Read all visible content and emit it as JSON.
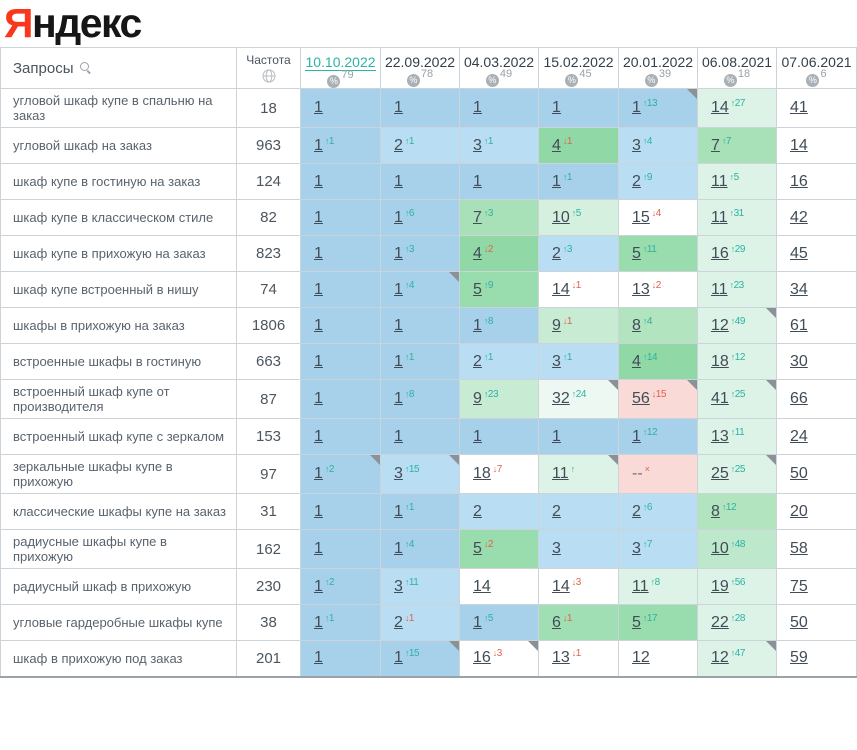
{
  "logo": {
    "first_letter": "Я",
    "rest": "ндекс",
    "first_letter_color": "#f9371c"
  },
  "symbols": {
    "up_arrow": "↑",
    "down_arrow": "↓",
    "dropped_mark": "×",
    "percent": "%"
  },
  "colors": {
    "sup_up": "#2bb2a0",
    "sup_down": "#e0614f",
    "active_date": "#2bb3a3",
    "bg": {
      "b1": "#a7d1eb",
      "b2": "#b9def3",
      "g4": "#90d9a6",
      "g5": "#99dcad",
      "g6": "#a0dfb3",
      "g7": "#a8e1b8",
      "g8": "#b1e4bf",
      "g9": "#c7ecd3",
      "g10": "#d6f0df",
      "g10b": "#bee8cc",
      "p": "#def3e7",
      "pp": "#edf8f2",
      "w": "#ffffff",
      "r": "#f9dad7"
    }
  },
  "header": {
    "queries_label": "Запросы",
    "frequency_label": "Частота",
    "search_icon": "magnifier-icon",
    "frequency_icon": "globe-icon"
  },
  "dates": [
    {
      "label": "10.10.2022",
      "percent": "79",
      "active": true
    },
    {
      "label": "22.09.2022",
      "percent": "78",
      "active": false
    },
    {
      "label": "04.03.2022",
      "percent": "49",
      "active": false
    },
    {
      "label": "15.02.2022",
      "percent": "45",
      "active": false
    },
    {
      "label": "20.01.2022",
      "percent": "39",
      "active": false
    },
    {
      "label": "06.08.2021",
      "percent": "18",
      "active": false
    },
    {
      "label": "07.06.2021",
      "percent": "6",
      "active": false
    }
  ],
  "rows": [
    {
      "query": "угловой шкаф купе в спальню на заказ",
      "frequency": "18",
      "cells": [
        {
          "value": "1",
          "change": "",
          "dir": "",
          "bg": "b1",
          "marker": false
        },
        {
          "value": "1",
          "change": "",
          "dir": "",
          "bg": "b1",
          "marker": false
        },
        {
          "value": "1",
          "change": "",
          "dir": "",
          "bg": "b1",
          "marker": false
        },
        {
          "value": "1",
          "change": "",
          "dir": "",
          "bg": "b1",
          "marker": false
        },
        {
          "value": "1",
          "change": "13",
          "dir": "up",
          "bg": "b1",
          "marker": true
        },
        {
          "value": "14",
          "change": "27",
          "dir": "up",
          "bg": "p",
          "marker": false
        },
        {
          "value": "41",
          "change": "",
          "dir": "",
          "bg": "w",
          "marker": false
        }
      ]
    },
    {
      "query": "угловой шкаф на заказ",
      "frequency": "963",
      "cells": [
        {
          "value": "1",
          "change": "1",
          "dir": "up",
          "bg": "b1",
          "marker": false
        },
        {
          "value": "2",
          "change": "1",
          "dir": "up",
          "bg": "b2",
          "marker": false
        },
        {
          "value": "3",
          "change": "1",
          "dir": "up",
          "bg": "b2",
          "marker": false
        },
        {
          "value": "4",
          "change": "1",
          "dir": "down",
          "bg": "g4",
          "marker": false
        },
        {
          "value": "3",
          "change": "4",
          "dir": "up",
          "bg": "b2",
          "marker": false
        },
        {
          "value": "7",
          "change": "7",
          "dir": "up",
          "bg": "g7",
          "marker": false
        },
        {
          "value": "14",
          "change": "",
          "dir": "",
          "bg": "w",
          "marker": false
        }
      ]
    },
    {
      "query": "шкаф купе в гостиную на заказ",
      "frequency": "124",
      "cells": [
        {
          "value": "1",
          "change": "",
          "dir": "",
          "bg": "b1",
          "marker": false
        },
        {
          "value": "1",
          "change": "",
          "dir": "",
          "bg": "b1",
          "marker": false
        },
        {
          "value": "1",
          "change": "",
          "dir": "",
          "bg": "b1",
          "marker": false
        },
        {
          "value": "1",
          "change": "1",
          "dir": "up",
          "bg": "b1",
          "marker": false
        },
        {
          "value": "2",
          "change": "9",
          "dir": "up",
          "bg": "b2",
          "marker": false
        },
        {
          "value": "11",
          "change": "5",
          "dir": "up",
          "bg": "p",
          "marker": false
        },
        {
          "value": "16",
          "change": "",
          "dir": "",
          "bg": "w",
          "marker": false
        }
      ]
    },
    {
      "query": "шкаф купе в классическом стиле",
      "frequency": "82",
      "cells": [
        {
          "value": "1",
          "change": "",
          "dir": "",
          "bg": "b1",
          "marker": false
        },
        {
          "value": "1",
          "change": "6",
          "dir": "up",
          "bg": "b1",
          "marker": false
        },
        {
          "value": "7",
          "change": "3",
          "dir": "up",
          "bg": "g7",
          "marker": false
        },
        {
          "value": "10",
          "change": "5",
          "dir": "up",
          "bg": "g10",
          "marker": false
        },
        {
          "value": "15",
          "change": "4",
          "dir": "down",
          "bg": "w",
          "marker": false
        },
        {
          "value": "11",
          "change": "31",
          "dir": "up",
          "bg": "p",
          "marker": false
        },
        {
          "value": "42",
          "change": "",
          "dir": "",
          "bg": "w",
          "marker": false
        }
      ]
    },
    {
      "query": "шкаф купе в прихожую на заказ",
      "frequency": "823",
      "cells": [
        {
          "value": "1",
          "change": "",
          "dir": "",
          "bg": "b1",
          "marker": false
        },
        {
          "value": "1",
          "change": "3",
          "dir": "up",
          "bg": "b1",
          "marker": false
        },
        {
          "value": "4",
          "change": "2",
          "dir": "down",
          "bg": "g4",
          "marker": false
        },
        {
          "value": "2",
          "change": "3",
          "dir": "up",
          "bg": "b2",
          "marker": false
        },
        {
          "value": "5",
          "change": "11",
          "dir": "up",
          "bg": "g5",
          "marker": false
        },
        {
          "value": "16",
          "change": "29",
          "dir": "up",
          "bg": "p",
          "marker": false
        },
        {
          "value": "45",
          "change": "",
          "dir": "",
          "bg": "w",
          "marker": false
        }
      ]
    },
    {
      "query": "шкаф купе встроенный в нишу",
      "frequency": "74",
      "cells": [
        {
          "value": "1",
          "change": "",
          "dir": "",
          "bg": "b1",
          "marker": false
        },
        {
          "value": "1",
          "change": "4",
          "dir": "up",
          "bg": "b1",
          "marker": true
        },
        {
          "value": "5",
          "change": "9",
          "dir": "up",
          "bg": "g5",
          "marker": false
        },
        {
          "value": "14",
          "change": "1",
          "dir": "down",
          "bg": "w",
          "marker": false
        },
        {
          "value": "13",
          "change": "2",
          "dir": "down",
          "bg": "w",
          "marker": false
        },
        {
          "value": "11",
          "change": "23",
          "dir": "up",
          "bg": "p",
          "marker": false
        },
        {
          "value": "34",
          "change": "",
          "dir": "",
          "bg": "w",
          "marker": false
        }
      ]
    },
    {
      "query": "шкафы в прихожую на заказ",
      "frequency": "1806",
      "cells": [
        {
          "value": "1",
          "change": "",
          "dir": "",
          "bg": "b1",
          "marker": false
        },
        {
          "value": "1",
          "change": "",
          "dir": "",
          "bg": "b1",
          "marker": false
        },
        {
          "value": "1",
          "change": "8",
          "dir": "up",
          "bg": "b1",
          "marker": false
        },
        {
          "value": "9",
          "change": "1",
          "dir": "down",
          "bg": "g9",
          "marker": false
        },
        {
          "value": "8",
          "change": "4",
          "dir": "up",
          "bg": "g8",
          "marker": false
        },
        {
          "value": "12",
          "change": "49",
          "dir": "up",
          "bg": "p",
          "marker": true
        },
        {
          "value": "61",
          "change": "",
          "dir": "",
          "bg": "w",
          "marker": false
        }
      ]
    },
    {
      "query": "встроенные шкафы в гостиную",
      "frequency": "663",
      "cells": [
        {
          "value": "1",
          "change": "",
          "dir": "",
          "bg": "b1",
          "marker": false
        },
        {
          "value": "1",
          "change": "1",
          "dir": "up",
          "bg": "b1",
          "marker": false
        },
        {
          "value": "2",
          "change": "1",
          "dir": "up",
          "bg": "b2",
          "marker": false
        },
        {
          "value": "3",
          "change": "1",
          "dir": "up",
          "bg": "b2",
          "marker": false
        },
        {
          "value": "4",
          "change": "14",
          "dir": "up",
          "bg": "g4",
          "marker": false
        },
        {
          "value": "18",
          "change": "12",
          "dir": "up",
          "bg": "p",
          "marker": false
        },
        {
          "value": "30",
          "change": "",
          "dir": "",
          "bg": "w",
          "marker": false
        }
      ]
    },
    {
      "query": "встроенный шкаф купе от производителя",
      "frequency": "87",
      "cells": [
        {
          "value": "1",
          "change": "",
          "dir": "",
          "bg": "b1",
          "marker": false
        },
        {
          "value": "1",
          "change": "8",
          "dir": "up",
          "bg": "b1",
          "marker": false
        },
        {
          "value": "9",
          "change": "23",
          "dir": "up",
          "bg": "g9",
          "marker": false
        },
        {
          "value": "32",
          "change": "24",
          "dir": "up",
          "bg": "pp",
          "marker": true
        },
        {
          "value": "56",
          "change": "15",
          "dir": "down",
          "bg": "r",
          "marker": true
        },
        {
          "value": "41",
          "change": "25",
          "dir": "up",
          "bg": "p",
          "marker": true
        },
        {
          "value": "66",
          "change": "",
          "dir": "",
          "bg": "w",
          "marker": false
        }
      ]
    },
    {
      "query": "встроенный шкаф купе с зеркалом",
      "frequency": "153",
      "cells": [
        {
          "value": "1",
          "change": "",
          "dir": "",
          "bg": "b1",
          "marker": false
        },
        {
          "value": "1",
          "change": "",
          "dir": "",
          "bg": "b1",
          "marker": false
        },
        {
          "value": "1",
          "change": "",
          "dir": "",
          "bg": "b1",
          "marker": false
        },
        {
          "value": "1",
          "change": "",
          "dir": "",
          "bg": "b1",
          "marker": false
        },
        {
          "value": "1",
          "change": "12",
          "dir": "up",
          "bg": "b1",
          "marker": false
        },
        {
          "value": "13",
          "change": "11",
          "dir": "up",
          "bg": "p",
          "marker": false
        },
        {
          "value": "24",
          "change": "",
          "dir": "",
          "bg": "w",
          "marker": false
        }
      ]
    },
    {
      "query": "зеркальные шкафы купе в прихожую",
      "frequency": "97",
      "cells": [
        {
          "value": "1",
          "change": "2",
          "dir": "up",
          "bg": "b1",
          "marker": true
        },
        {
          "value": "3",
          "change": "15",
          "dir": "up",
          "bg": "b2",
          "marker": true
        },
        {
          "value": "18",
          "change": "7",
          "dir": "down",
          "bg": "w",
          "marker": false
        },
        {
          "value": "11",
          "change": "",
          "dir": "uparrow",
          "bg": "p",
          "marker": true
        },
        {
          "value": "--",
          "change": "",
          "dir": "x",
          "bg": "r",
          "marker": false
        },
        {
          "value": "25",
          "change": "25",
          "dir": "up",
          "bg": "p",
          "marker": true
        },
        {
          "value": "50",
          "change": "",
          "dir": "",
          "bg": "w",
          "marker": false
        }
      ]
    },
    {
      "query": "классические шкафы купе на заказ",
      "frequency": "31",
      "cells": [
        {
          "value": "1",
          "change": "",
          "dir": "",
          "bg": "b1",
          "marker": false
        },
        {
          "value": "1",
          "change": "1",
          "dir": "up",
          "bg": "b1",
          "marker": false
        },
        {
          "value": "2",
          "change": "",
          "dir": "",
          "bg": "b2",
          "marker": false
        },
        {
          "value": "2",
          "change": "",
          "dir": "",
          "bg": "b2",
          "marker": false
        },
        {
          "value": "2",
          "change": "6",
          "dir": "up",
          "bg": "b2",
          "marker": false
        },
        {
          "value": "8",
          "change": "12",
          "dir": "up",
          "bg": "g8",
          "marker": false
        },
        {
          "value": "20",
          "change": "",
          "dir": "",
          "bg": "w",
          "marker": false
        }
      ]
    },
    {
      "query": "радиусные шкафы купе в прихожую",
      "frequency": "162",
      "cells": [
        {
          "value": "1",
          "change": "",
          "dir": "",
          "bg": "b1",
          "marker": false
        },
        {
          "value": "1",
          "change": "4",
          "dir": "up",
          "bg": "b1",
          "marker": false
        },
        {
          "value": "5",
          "change": "2",
          "dir": "down",
          "bg": "g5",
          "marker": false
        },
        {
          "value": "3",
          "change": "",
          "dir": "",
          "bg": "b2",
          "marker": false
        },
        {
          "value": "3",
          "change": "7",
          "dir": "up",
          "bg": "b2",
          "marker": false
        },
        {
          "value": "10",
          "change": "48",
          "dir": "up",
          "bg": "g10b",
          "marker": false
        },
        {
          "value": "58",
          "change": "",
          "dir": "",
          "bg": "w",
          "marker": false
        }
      ]
    },
    {
      "query": "радиусный шкаф в прихожую",
      "frequency": "230",
      "cells": [
        {
          "value": "1",
          "change": "2",
          "dir": "up",
          "bg": "b1",
          "marker": false
        },
        {
          "value": "3",
          "change": "11",
          "dir": "up",
          "bg": "b2",
          "marker": false
        },
        {
          "value": "14",
          "change": "",
          "dir": "",
          "bg": "w",
          "marker": false
        },
        {
          "value": "14",
          "change": "3",
          "dir": "down",
          "bg": "w",
          "marker": false
        },
        {
          "value": "11",
          "change": "8",
          "dir": "up",
          "bg": "p",
          "marker": false
        },
        {
          "value": "19",
          "change": "56",
          "dir": "up",
          "bg": "p",
          "marker": false
        },
        {
          "value": "75",
          "change": "",
          "dir": "",
          "bg": "w",
          "marker": false
        }
      ]
    },
    {
      "query": "угловые гардеробные шкафы купе",
      "frequency": "38",
      "cells": [
        {
          "value": "1",
          "change": "1",
          "dir": "up",
          "bg": "b1",
          "marker": false
        },
        {
          "value": "2",
          "change": "1",
          "dir": "down",
          "bg": "b2",
          "marker": false
        },
        {
          "value": "1",
          "change": "5",
          "dir": "up",
          "bg": "b1",
          "marker": false
        },
        {
          "value": "6",
          "change": "1",
          "dir": "down",
          "bg": "g6",
          "marker": false
        },
        {
          "value": "5",
          "change": "17",
          "dir": "up",
          "bg": "g5",
          "marker": false
        },
        {
          "value": "22",
          "change": "28",
          "dir": "up",
          "bg": "p",
          "marker": false
        },
        {
          "value": "50",
          "change": "",
          "dir": "",
          "bg": "w",
          "marker": false
        }
      ]
    },
    {
      "query": "шкаф в прихожую под заказ",
      "frequency": "201",
      "cells": [
        {
          "value": "1",
          "change": "",
          "dir": "",
          "bg": "b1",
          "marker": false
        },
        {
          "value": "1",
          "change": "15",
          "dir": "up",
          "bg": "b1",
          "marker": true
        },
        {
          "value": "16",
          "change": "3",
          "dir": "down",
          "bg": "w",
          "marker": true
        },
        {
          "value": "13",
          "change": "1",
          "dir": "down",
          "bg": "w",
          "marker": false
        },
        {
          "value": "12",
          "change": "",
          "dir": "",
          "bg": "w",
          "marker": false
        },
        {
          "value": "12",
          "change": "47",
          "dir": "up",
          "bg": "p",
          "marker": true
        },
        {
          "value": "59",
          "change": "",
          "dir": "",
          "bg": "w",
          "marker": false
        }
      ]
    }
  ]
}
